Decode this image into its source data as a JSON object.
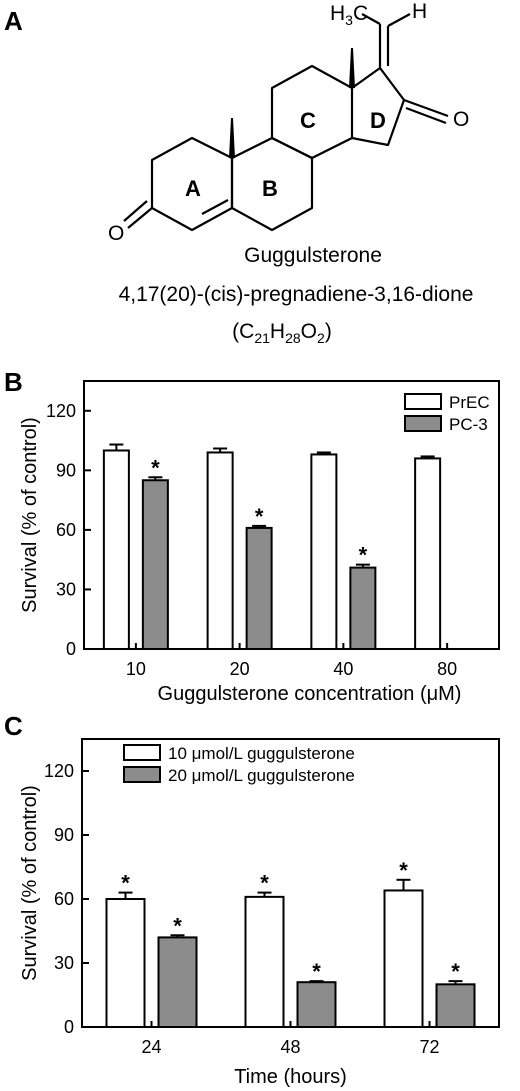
{
  "panels": {
    "a": {
      "letter": "A",
      "ring_labels": [
        "A",
        "B",
        "C",
        "D"
      ],
      "methyl_label_h": "H",
      "methyl_label_sub": "3",
      "methyl_label_c": "C",
      "h_label": "H",
      "oxygen_label": "O",
      "compound_name": "Guggulsterone",
      "iupac_name": "4,17(20)-(cis)-pregnadiene-3,16-dione",
      "formula": {
        "open": "(C",
        "c_sub": "21",
        "h": "H",
        "h_sub": "28",
        "o": "O",
        "o_sub": "2",
        "close": ")"
      }
    },
    "b": {
      "letter": "B"
    },
    "c": {
      "letter": "C"
    }
  },
  "chart_data": [
    {
      "type": "bar",
      "panel": "B",
      "categories": [
        "10",
        "20",
        "40",
        "80"
      ],
      "series": [
        {
          "name": "PrEC",
          "values": [
            100,
            99,
            98,
            96
          ],
          "errors": [
            3,
            2,
            1,
            1
          ],
          "fill": "#ffffff"
        },
        {
          "name": "PC-3",
          "values": [
            85,
            61,
            41,
            null
          ],
          "errors": [
            1.5,
            1,
            1.5,
            null
          ],
          "fill": "#8c8c8c",
          "significant": [
            true,
            true,
            true,
            false
          ]
        }
      ],
      "xlabel": "Guggulsterone concentration (μM)",
      "ylabel": "Survival (% of control)",
      "ylim": [
        0,
        135
      ],
      "yticks": [
        0,
        30,
        60,
        90,
        120
      ],
      "legend_position": "top-right",
      "significance_marker": "*"
    },
    {
      "type": "bar",
      "panel": "C",
      "categories": [
        "24",
        "48",
        "72"
      ],
      "series": [
        {
          "name": "10 μmol/L guggulsterone",
          "values": [
            60,
            61,
            64
          ],
          "errors": [
            3,
            2,
            5
          ],
          "fill": "#ffffff",
          "significant": [
            true,
            true,
            true
          ]
        },
        {
          "name": "20 μmol/L guggulsterone",
          "values": [
            42,
            21,
            20
          ],
          "errors": [
            1,
            0.5,
            1.5
          ],
          "fill": "#8c8c8c",
          "significant": [
            true,
            true,
            true
          ]
        }
      ],
      "xlabel": "Time (hours)",
      "ylabel": "Survival (% of control)",
      "ylim": [
        0,
        135
      ],
      "yticks": [
        0,
        30,
        60,
        90,
        120
      ],
      "legend_position": "top-left",
      "significance_marker": "*"
    }
  ]
}
